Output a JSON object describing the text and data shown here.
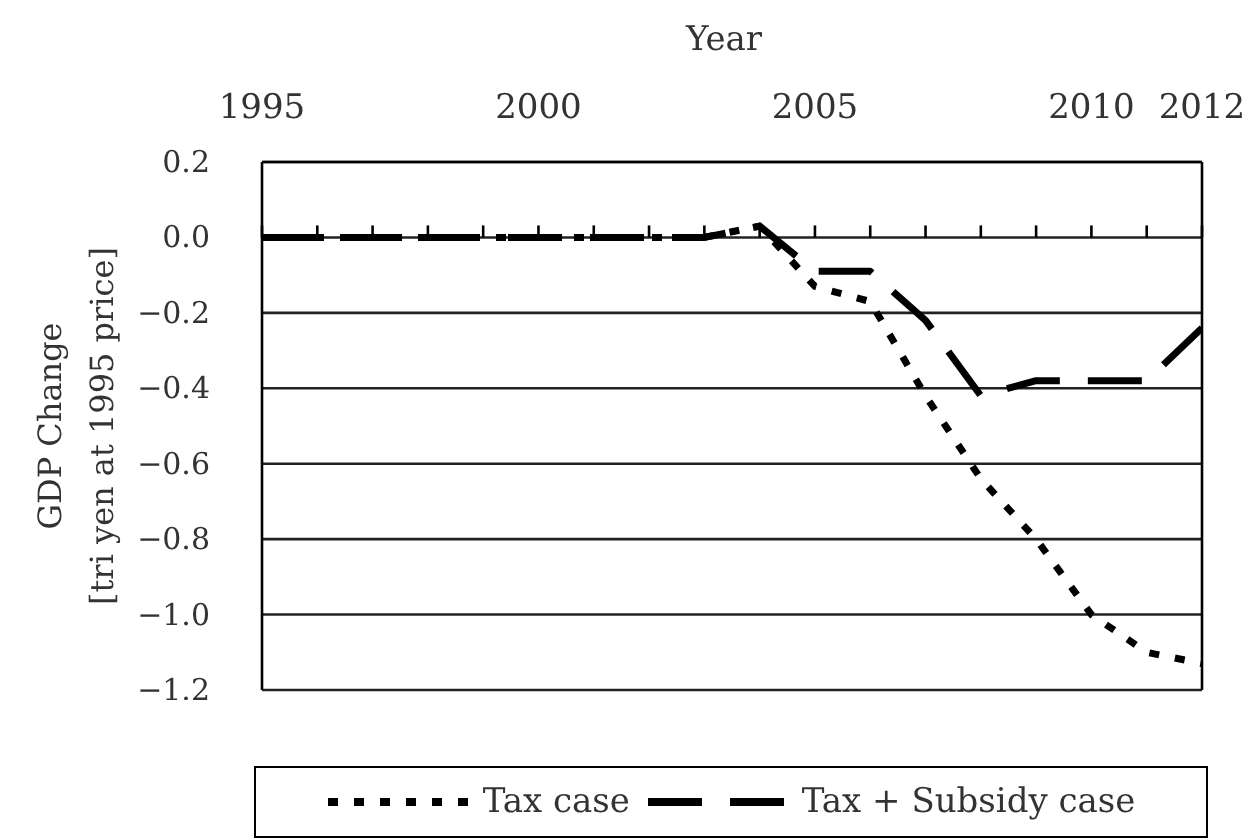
{
  "chart_data": {
    "type": "line",
    "xlabel": "Year",
    "ylabel": "GDP Change\n[tri yen at 1995 price]",
    "x": [
      1995,
      1996,
      1997,
      1998,
      1999,
      2000,
      2001,
      2002,
      2003,
      2004,
      2005,
      2006,
      2007,
      2008,
      2009,
      2010,
      2011,
      2012
    ],
    "series": [
      {
        "name": "Tax case",
        "color": "#000000",
        "line_style": "dotted",
        "values": [
          0,
          0,
          0,
          0,
          0,
          0,
          0,
          0,
          0,
          0.03,
          -0.13,
          -0.17,
          -0.42,
          -0.64,
          -0.8,
          -1.0,
          -1.1,
          -1.13
        ]
      },
      {
        "name": "Tax + Subsidy case",
        "color": "#000000",
        "line_style": "dashed",
        "values": [
          0,
          0,
          0,
          0,
          0,
          0,
          0,
          0,
          0,
          0.03,
          -0.09,
          -0.09,
          -0.22,
          -0.42,
          -0.38,
          -0.38,
          -0.38,
          -0.24
        ]
      }
    ],
    "xlim": [
      1995,
      2012
    ],
    "xticks": [
      1995,
      {
        "value": 1996,
        "label": null
      },
      {
        "value": 1997,
        "label": null
      },
      {
        "value": 1998,
        "label": null
      },
      {
        "value": 1999,
        "label": null
      },
      2000,
      {
        "value": 2001,
        "label": null
      },
      {
        "value": 2002,
        "label": null
      },
      {
        "value": 2003,
        "label": null
      },
      {
        "value": 2004,
        "label": null
      },
      2005,
      {
        "value": 2006,
        "label": null
      },
      {
        "value": 2007,
        "label": null
      },
      {
        "value": 2008,
        "label": null
      },
      {
        "value": 2009,
        "label": null
      },
      2010,
      {
        "value": 2011,
        "label": null
      },
      2012
    ],
    "ylim": [
      -1.2,
      0.2
    ],
    "yticks": [
      {
        "value": -1.2,
        "label": "−1.2"
      },
      {
        "value": -1.0,
        "label": "−1.0"
      },
      {
        "value": -0.8,
        "label": "−0.8"
      },
      {
        "value": -0.6,
        "label": "−0.6"
      },
      {
        "value": -0.4,
        "label": "−0.4"
      },
      {
        "value": -0.2,
        "label": "−0.2"
      },
      {
        "value": 0,
        "label": "0.0"
      },
      0.2
    ],
    "grid": "y",
    "legend": "bottom",
    "marker": "none"
  }
}
